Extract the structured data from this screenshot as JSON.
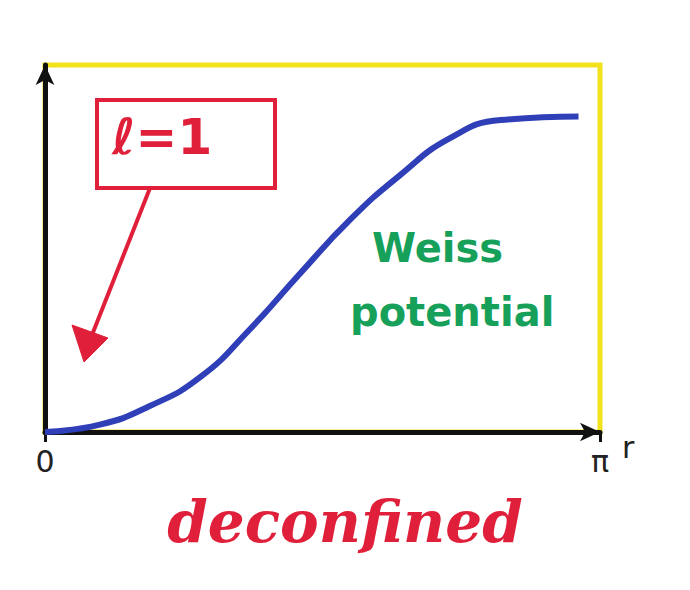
{
  "chart_data": {
    "type": "line",
    "title": "deconfined",
    "x_label": "r",
    "x": [
      0,
      0.31,
      0.59,
      0.88,
      1.16,
      1.44,
      1.73,
      2.01,
      2.29,
      2.58,
      3.02
    ],
    "series": [
      {
        "name": "Weiss potential",
        "color": "#2f3fb8",
        "values": [
          0,
          0.02,
          0.07,
          0.15,
          0.28,
          0.43,
          0.58,
          0.7,
          0.8,
          0.85,
          0.86
        ]
      }
    ],
    "xlim": [
      0,
      3.14159
    ],
    "xticks": [
      0,
      {
        "value": 3.14159,
        "label": "π"
      }
    ],
    "ylim": [
      0,
      1
    ],
    "tick_labels": "x",
    "grid": false,
    "annotations": [
      "ℓ=1",
      "Weiss potential"
    ]
  }
}
